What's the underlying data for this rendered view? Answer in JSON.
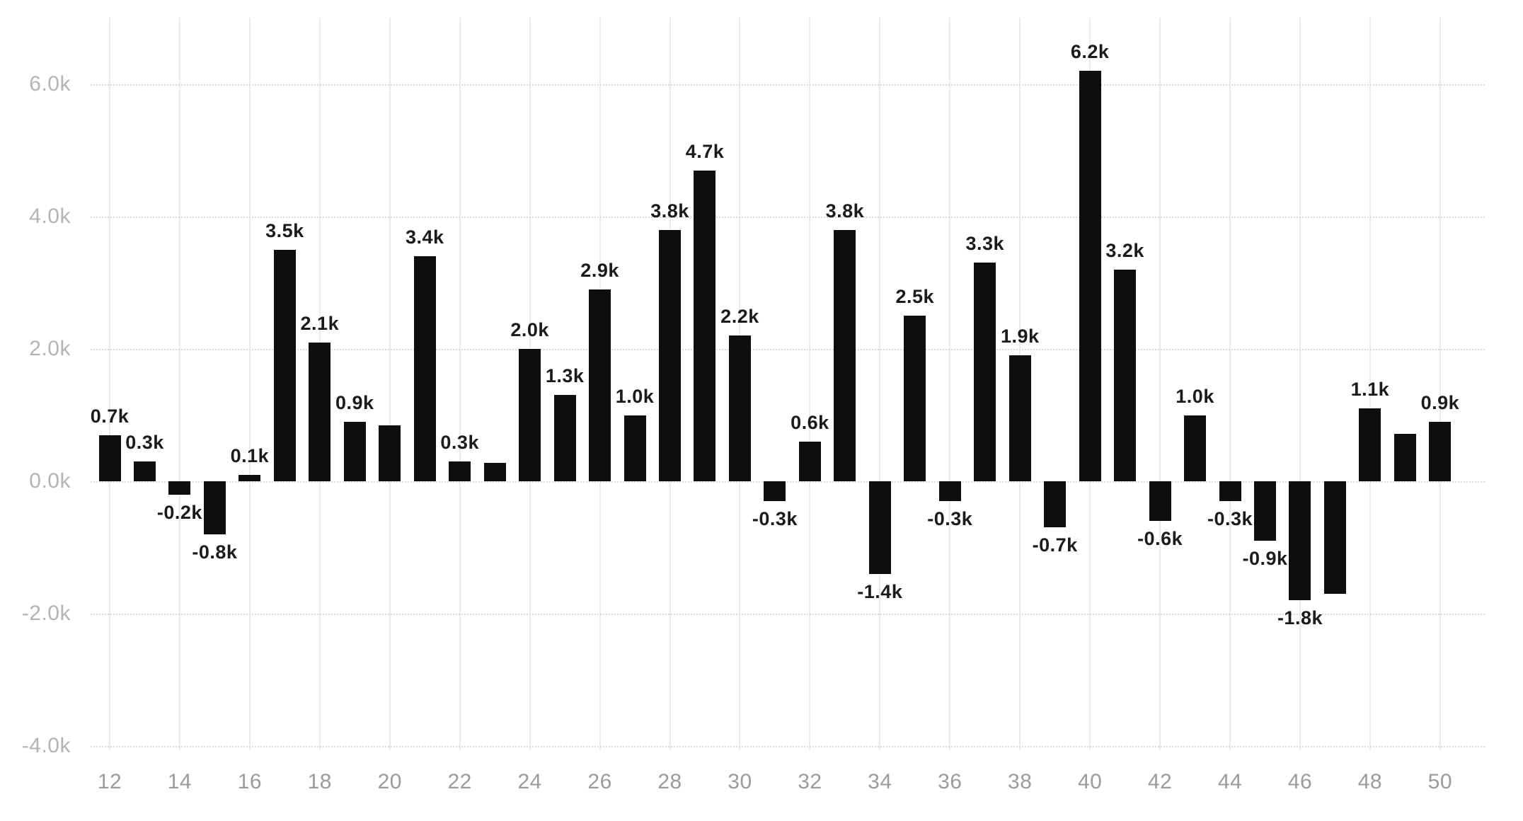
{
  "chart_data": {
    "type": "bar",
    "title": "",
    "legend": "none",
    "grid": true,
    "bar_color": "#0e0e0e",
    "value_unit": "thousands",
    "xlim": [
      11,
      51
    ],
    "ylim_k": [
      -4.6,
      7.0
    ],
    "y_ticks": [
      {
        "label": "6.0k",
        "value_k": 6
      },
      {
        "label": "4.0k",
        "value_k": 4
      },
      {
        "label": "2.0k",
        "value_k": 2
      },
      {
        "label": "0.0k",
        "value_k": 0
      },
      {
        "label": "-2.0k",
        "value_k": -2
      },
      {
        "label": "-4.0k",
        "value_k": -4
      }
    ],
    "x_ticks": [
      {
        "label": "12",
        "x": 12
      },
      {
        "label": "14",
        "x": 14
      },
      {
        "label": "16",
        "x": 16
      },
      {
        "label": "18",
        "x": 18
      },
      {
        "label": "20",
        "x": 20
      },
      {
        "label": "22",
        "x": 22
      },
      {
        "label": "24",
        "x": 24
      },
      {
        "label": "26",
        "x": 26
      },
      {
        "label": "28",
        "x": 28
      },
      {
        "label": "30",
        "x": 30
      },
      {
        "label": "32",
        "x": 32
      },
      {
        "label": "34",
        "x": 34
      },
      {
        "label": "36",
        "x": 36
      },
      {
        "label": "38",
        "x": 38
      },
      {
        "label": "40",
        "x": 40
      },
      {
        "label": "42",
        "x": 42
      },
      {
        "label": "44",
        "x": 44
      },
      {
        "label": "46",
        "x": 46
      },
      {
        "label": "48",
        "x": 48
      },
      {
        "label": "50",
        "x": 50
      }
    ],
    "bars": [
      {
        "x": 12,
        "value_k": 0.7,
        "label": "0.7k"
      },
      {
        "x": 13,
        "value_k": 0.3,
        "label": "0.3k"
      },
      {
        "x": 14,
        "value_k": -0.2,
        "label": "-0.2k"
      },
      {
        "x": 15,
        "value_k": -0.8,
        "label": "-0.8k"
      },
      {
        "x": 16,
        "value_k": 0.1,
        "label": "0.1k"
      },
      {
        "x": 17,
        "value_k": 3.5,
        "label": "3.5k"
      },
      {
        "x": 18,
        "value_k": 2.1,
        "label": "2.1k"
      },
      {
        "x": 19,
        "value_k": 0.9,
        "label": "0.9k"
      },
      {
        "x": 20,
        "value_k": 0.85,
        "label": null
      },
      {
        "x": 21,
        "value_k": 3.4,
        "label": "3.4k"
      },
      {
        "x": 22,
        "value_k": 0.3,
        "label": "0.3k"
      },
      {
        "x": 23,
        "value_k": 0.28,
        "label": null
      },
      {
        "x": 24,
        "value_k": 2.0,
        "label": "2.0k"
      },
      {
        "x": 25,
        "value_k": 1.3,
        "label": "1.3k"
      },
      {
        "x": 26,
        "value_k": 2.9,
        "label": "2.9k"
      },
      {
        "x": 27,
        "value_k": 1.0,
        "label": "1.0k"
      },
      {
        "x": 28,
        "value_k": 3.8,
        "label": "3.8k"
      },
      {
        "x": 29,
        "value_k": 4.7,
        "label": "4.7k"
      },
      {
        "x": 30,
        "value_k": 2.2,
        "label": "2.2k"
      },
      {
        "x": 31,
        "value_k": -0.3,
        "label": "-0.3k"
      },
      {
        "x": 32,
        "value_k": 0.6,
        "label": "0.6k"
      },
      {
        "x": 33,
        "value_k": 3.8,
        "label": "3.8k"
      },
      {
        "x": 34,
        "value_k": -1.4,
        "label": "-1.4k"
      },
      {
        "x": 35,
        "value_k": 2.5,
        "label": "2.5k"
      },
      {
        "x": 36,
        "value_k": -0.3,
        "label": "-0.3k"
      },
      {
        "x": 37,
        "value_k": 3.3,
        "label": "3.3k"
      },
      {
        "x": 38,
        "value_k": 1.9,
        "label": "1.9k"
      },
      {
        "x": 39,
        "value_k": -0.7,
        "label": "-0.7k"
      },
      {
        "x": 40,
        "value_k": 6.2,
        "label": "6.2k"
      },
      {
        "x": 41,
        "value_k": 3.2,
        "label": "3.2k"
      },
      {
        "x": 42,
        "value_k": -0.6,
        "label": "-0.6k"
      },
      {
        "x": 43,
        "value_k": 1.0,
        "label": "1.0k"
      },
      {
        "x": 44,
        "value_k": -0.3,
        "label": "-0.3k"
      },
      {
        "x": 45,
        "value_k": -0.9,
        "label": "-0.9k"
      },
      {
        "x": 46,
        "value_k": -1.8,
        "label": "-1.8k"
      },
      {
        "x": 47,
        "value_k": -1.7,
        "label": null
      },
      {
        "x": 48,
        "value_k": 1.1,
        "label": "1.1k"
      },
      {
        "x": 49,
        "value_k": 0.72,
        "label": null
      },
      {
        "x": 50,
        "value_k": 0.9,
        "label": "0.9k"
      }
    ]
  }
}
